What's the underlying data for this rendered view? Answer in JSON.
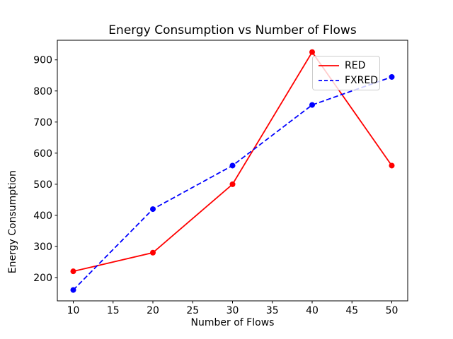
{
  "chart_data": {
    "type": "line",
    "title": "Energy Consumption vs Number of Flows",
    "xlabel": "Number of Flows",
    "ylabel": "Energy Consumption",
    "x": [
      10,
      20,
      30,
      40,
      50
    ],
    "series": [
      {
        "name": "RED",
        "values": [
          220,
          280,
          500,
          925,
          560
        ],
        "color": "#ff0000",
        "line_style": "solid",
        "marker": "circle"
      },
      {
        "name": "FXRED",
        "values": [
          160,
          420,
          560,
          755,
          845
        ],
        "color": "#0000ff",
        "line_style": "dashed",
        "marker": "circle"
      }
    ],
    "xticks": [
      10,
      15,
      20,
      25,
      30,
      35,
      40,
      45,
      50
    ],
    "yticks": [
      200,
      300,
      400,
      500,
      600,
      700,
      800,
      900
    ],
    "xlim": [
      8,
      52
    ],
    "ylim": [
      125,
      963
    ],
    "grid": false,
    "legend_position": "upper right",
    "axis_color": "#000000",
    "background_color": "#ffffff"
  }
}
